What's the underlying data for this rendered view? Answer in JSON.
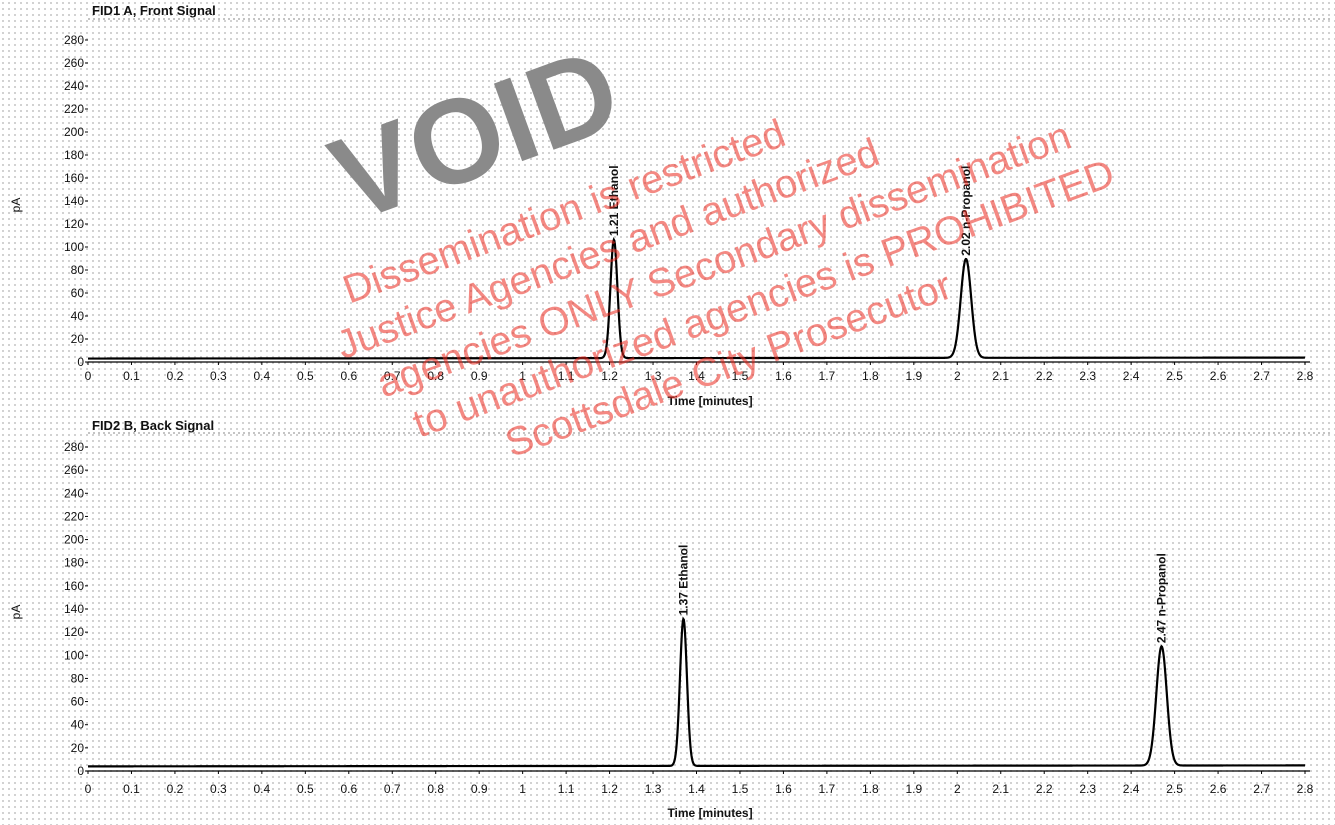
{
  "watermark": {
    "stamp": "VOID",
    "lines": [
      "Dissemination is restricted",
      "Justice Agencies and authorized",
      "agencies ONLY Secondary dissemination",
      "to unauthorized agencies is PROHIBITED",
      "Scottsdale City Prosecutor"
    ],
    "color": "#eb281e"
  },
  "chart_data": [
    {
      "type": "line",
      "title": "FID1 A, Front Signal",
      "xlabel": "Time [minutes]",
      "ylabel": "pA",
      "xlim": [
        0,
        2.8
      ],
      "ylim": [
        0,
        280
      ],
      "x_ticks": [
        "0",
        "0.1",
        "0.2",
        "0.3",
        "0.4",
        "0.5",
        "0.6",
        "0.7",
        "0.8",
        "0.9",
        "1",
        "1.1",
        "1.2",
        "1.3",
        "1.4",
        "1.5",
        "1.6",
        "1.7",
        "1.8",
        "1.9",
        "2",
        "2.1",
        "2.2",
        "2.3",
        "2.4",
        "2.5",
        "2.6",
        "2.7",
        "2.8"
      ],
      "y_ticks": [
        "0",
        "20",
        "40",
        "60",
        "80",
        "100",
        "120",
        "140",
        "160",
        "180",
        "200",
        "220",
        "240",
        "260",
        "280"
      ],
      "baseline": 3,
      "peaks": [
        {
          "time": 1.21,
          "height": 103,
          "width": 0.008,
          "label": "1.21  Ethanol"
        },
        {
          "time": 2.02,
          "height": 86,
          "width": 0.012,
          "label": "2.02  n-Propanol"
        }
      ]
    },
    {
      "type": "line",
      "title": "FID2 B, Back Signal",
      "xlabel": "Time [minutes]",
      "ylabel": "pA",
      "xlim": [
        0,
        2.8
      ],
      "ylim": [
        0,
        280
      ],
      "x_ticks": [
        "0",
        "0.1",
        "0.2",
        "0.3",
        "0.4",
        "0.5",
        "0.6",
        "0.7",
        "0.8",
        "0.9",
        "1",
        "1.1",
        "1.2",
        "1.3",
        "1.4",
        "1.5",
        "1.6",
        "1.7",
        "1.8",
        "1.9",
        "2",
        "2.1",
        "2.2",
        "2.3",
        "2.4",
        "2.5",
        "2.6",
        "2.7",
        "2.8"
      ],
      "y_ticks": [
        "0",
        "20",
        "40",
        "60",
        "80",
        "100",
        "120",
        "140",
        "160",
        "180",
        "200",
        "220",
        "240",
        "260",
        "280"
      ],
      "baseline": 4,
      "peaks": [
        {
          "time": 1.37,
          "height": 127,
          "width": 0.008,
          "label": "1.37  Ethanol"
        },
        {
          "time": 2.47,
          "height": 103,
          "width": 0.012,
          "label": "2.47  n-Propanol"
        }
      ]
    }
  ]
}
